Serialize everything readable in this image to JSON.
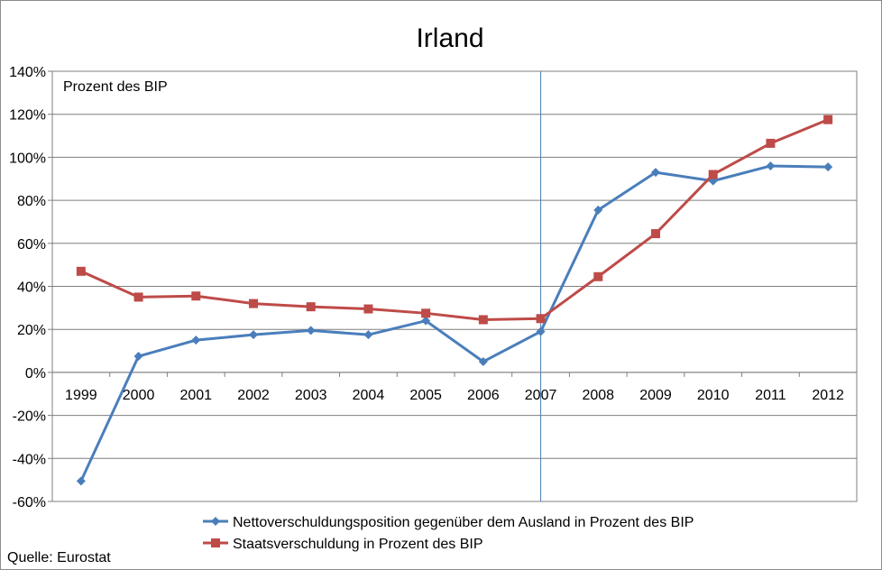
{
  "chart_data": {
    "type": "line",
    "title": "Irland",
    "unit_label": "Prozent des BIP",
    "source": "Quelle: Eurostat",
    "categories": [
      "1999",
      "2000",
      "2001",
      "2002",
      "2003",
      "2004",
      "2005",
      "2006",
      "2007",
      "2008",
      "2009",
      "2010",
      "2011",
      "2012"
    ],
    "ylim": [
      -60,
      140
    ],
    "yticks": [
      -60,
      -40,
      -20,
      0,
      20,
      40,
      60,
      80,
      100,
      120,
      140
    ],
    "ytick_labels": [
      "-60%",
      "-40%",
      "-20%",
      "0%",
      "20%",
      "40%",
      "60%",
      "80%",
      "100%",
      "120%",
      "140%"
    ],
    "grid": true,
    "vertical_marker_category": "2007",
    "legend_position": "bottom",
    "series": [
      {
        "name": "Nettoverschuldungsposition gegenüber dem Ausland in Prozent des BIP",
        "color": "#4a7ebb",
        "marker": "diamond",
        "values": [
          -50.5,
          7.5,
          15,
          17.5,
          19.5,
          17.5,
          24,
          5,
          19,
          75.5,
          93,
          89,
          96,
          95.5
        ]
      },
      {
        "name": "Staatsverschuldung in Prozent des BIP",
        "color": "#be4b48",
        "marker": "square",
        "values": [
          47,
          35,
          35.5,
          32,
          30.5,
          29.5,
          27.5,
          24.5,
          25,
          44.5,
          64.5,
          92,
          106.5,
          117.5
        ]
      }
    ]
  }
}
